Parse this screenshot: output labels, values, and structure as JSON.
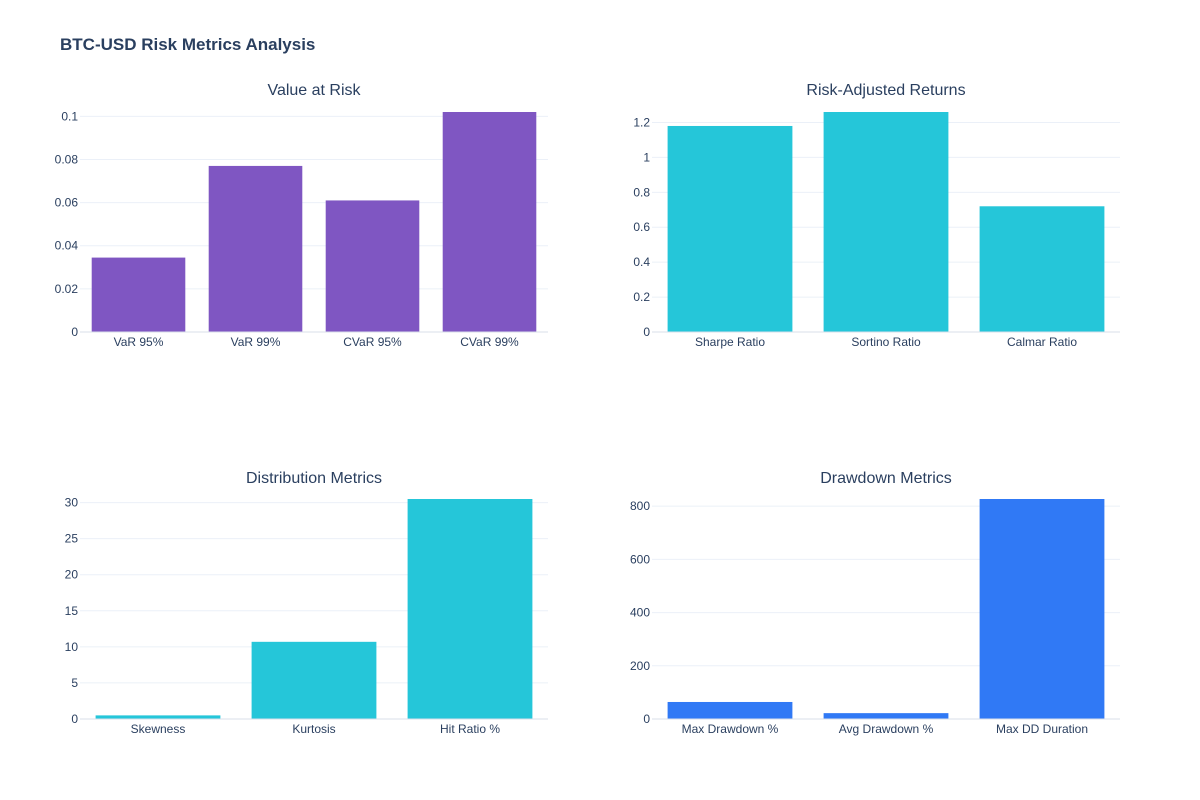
{
  "title": "BTC-USD Risk Metrics Analysis",
  "colors": {
    "text": "#2a3f5f",
    "tick_text": "#2a3f5f",
    "grid": "#ebf0f8",
    "axis_line": "#d8dfea",
    "purple": "#7f56c2",
    "cyan": "#25c6d9",
    "blue": "#3079f5"
  },
  "chart_data": [
    {
      "type": "bar",
      "title": "Value at Risk",
      "color": "#7f56c2",
      "categories": [
        "VaR 95%",
        "VaR 99%",
        "CVaR 95%",
        "CVaR 99%"
      ],
      "values": [
        0.0345,
        0.077,
        0.061,
        0.102
      ],
      "ylim": [
        0,
        0.102
      ],
      "yticks": [
        0,
        0.02,
        0.04,
        0.06,
        0.08,
        0.1
      ],
      "ytick_labels": [
        "0",
        "0.02",
        "0.04",
        "0.06",
        "0.08",
        "0.1"
      ]
    },
    {
      "type": "bar",
      "title": "Risk-Adjusted Returns",
      "color": "#25c6d9",
      "categories": [
        "Sharpe Ratio",
        "Sortino Ratio",
        "Calmar Ratio"
      ],
      "values": [
        1.18,
        1.26,
        0.72
      ],
      "ylim": [
        0,
        1.26
      ],
      "yticks": [
        0,
        0.2,
        0.4,
        0.6,
        0.8,
        1,
        1.2
      ],
      "ytick_labels": [
        "0",
        "0.2",
        "0.4",
        "0.6",
        "0.8",
        "1",
        "1.2"
      ]
    },
    {
      "type": "bar",
      "title": "Distribution Metrics",
      "color": "#25c6d9",
      "categories": [
        "Skewness",
        "Kurtosis",
        "Hit Ratio %"
      ],
      "values": [
        0.5,
        10.7,
        30.5
      ],
      "ylim": [
        0,
        30.5
      ],
      "yticks": [
        0,
        5,
        10,
        15,
        20,
        25,
        30
      ],
      "ytick_labels": [
        "0",
        "5",
        "10",
        "15",
        "20",
        "25",
        "30"
      ]
    },
    {
      "type": "bar",
      "title": "Drawdown Metrics",
      "color": "#3079f5",
      "categories": [
        "Max Drawdown %",
        "Avg Drawdown %",
        "Max DD Duration"
      ],
      "values": [
        64,
        22,
        827
      ],
      "ylim": [
        0,
        827
      ],
      "yticks": [
        0,
        200,
        400,
        600,
        800
      ],
      "ytick_labels": [
        "0",
        "200",
        "400",
        "600",
        "800"
      ]
    }
  ]
}
